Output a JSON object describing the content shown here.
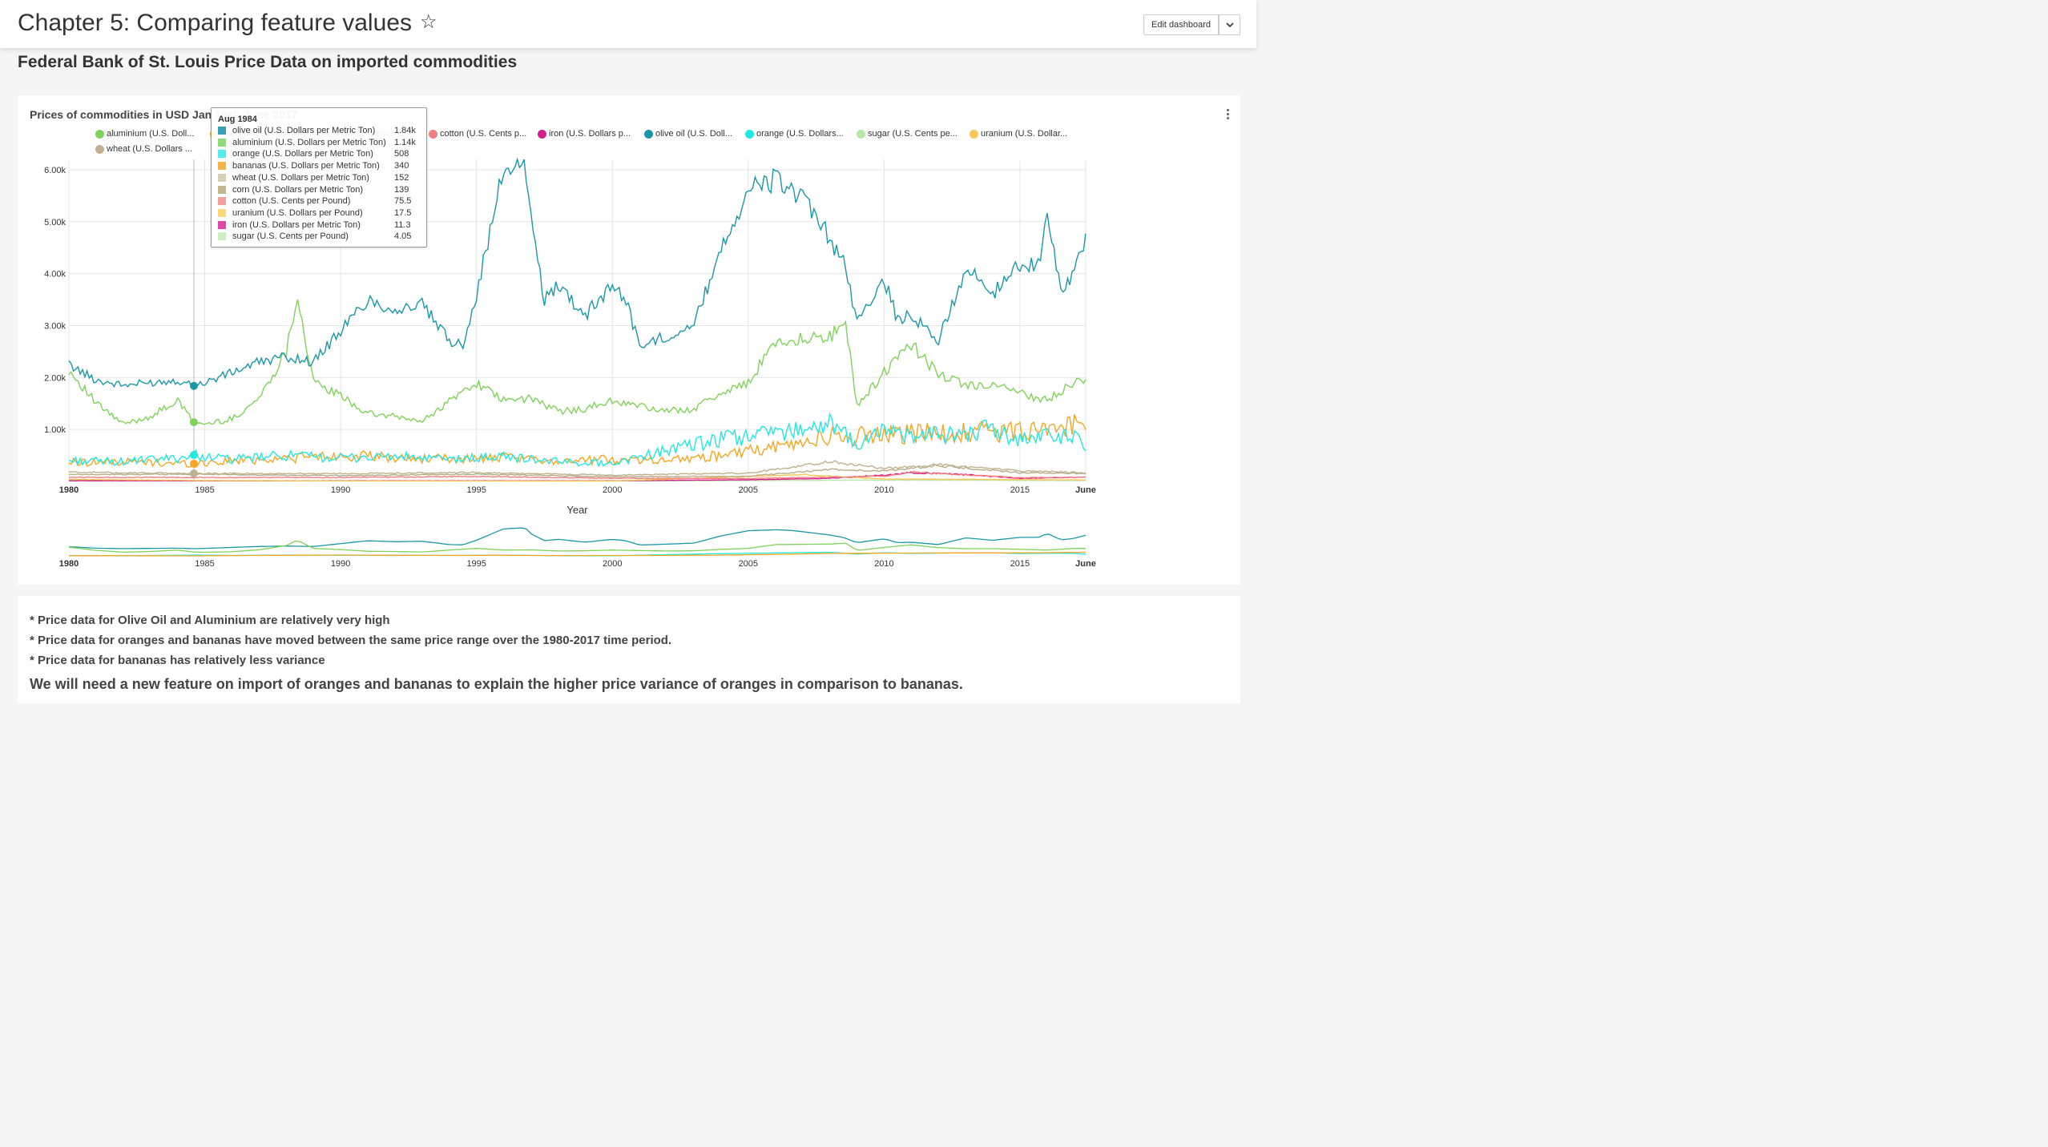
{
  "header": {
    "title": "Chapter 5: Comparing feature values",
    "edit_label": "Edit dashboard"
  },
  "section_title": "Federal Bank of St. Louis Price Data on imported commodities",
  "chart": {
    "title": "Prices of commodities in USD Jan 1980-June 2017",
    "xlabel": "Year",
    "legend": [
      {
        "name": "aluminium (U.S. Doll...",
        "color": "#7fd35a"
      },
      {
        "name": "bananas (U.S. Dollars...",
        "color": "#f5a623"
      },
      {
        "name": "corn (U.S. Dollars ...",
        "color": "#b8ad88"
      },
      {
        "name": "cotton (U.S. Cents p...",
        "color": "#f07f7f"
      },
      {
        "name": "iron (U.S. Dollars p...",
        "color": "#d81b8a"
      },
      {
        "name": "olive oil (U.S. Doll...",
        "color": "#1a98a8"
      },
      {
        "name": "orange (U.S. Dollars...",
        "color": "#22e8e0"
      },
      {
        "name": "sugar (U.S. Cents pe...",
        "color": "#b6e8a8"
      },
      {
        "name": "uranium (U.S. Dollar...",
        "color": "#f7c75a"
      },
      {
        "name": "wheat (U.S. Dollars ...",
        "color": "#c0b090"
      }
    ],
    "x_ticks": [
      "1980",
      "1985",
      "1990",
      "1995",
      "2000",
      "2005",
      "2010",
      "2015",
      "June"
    ],
    "y_ticks": [
      "1.00k",
      "2.00k",
      "3.00k",
      "4.00k",
      "5.00k",
      "6.00k"
    ]
  },
  "tooltip": {
    "date": "Aug 1984",
    "rows": [
      {
        "name": "olive oil (U.S. Dollars per Metric Ton)",
        "value": "1.84k",
        "color": "#3aa0b8"
      },
      {
        "name": "aluminium (U.S. Dollars per Metric Ton)",
        "value": "1.14k",
        "color": "#8fdc7a"
      },
      {
        "name": "orange (U.S. Dollars per Metric Ton)",
        "value": "508",
        "color": "#4ff0ec"
      },
      {
        "name": "bananas (U.S. Dollars per Metric Ton)",
        "value": "340",
        "color": "#f7b347"
      },
      {
        "name": "wheat (U.S. Dollars per Metric Ton)",
        "value": "152",
        "color": "#d8d0b0"
      },
      {
        "name": "corn (U.S. Dollars per Metric Ton)",
        "value": "139",
        "color": "#c0b690"
      },
      {
        "name": "cotton (U.S. Cents per Pound)",
        "value": "75.5",
        "color": "#f5a0a0"
      },
      {
        "name": "uranium (U.S. Dollars per Pound)",
        "value": "17.5",
        "color": "#fbd97a"
      },
      {
        "name": "iron (U.S. Dollars per Metric Ton)",
        "value": "11.3",
        "color": "#e04aa6"
      },
      {
        "name": "sugar (U.S. Cents per Pound)",
        "value": "4.05",
        "color": "#ccefc2"
      }
    ]
  },
  "notes": [
    "* Price data for Olive Oil and Aluminium are relatively very high",
    "* Price data for oranges and bananas have moved between the same price range over the 1980-2017 time period.",
    "* Price data for bananas has relatively less variance"
  ],
  "conclusion": "We will need a new feature on import of oranges and bananas to explain the higher price variance of oranges in comparison to bananas.",
  "chart_data": {
    "type": "line",
    "title": "Prices of commodities in USD Jan 1980-June 2017",
    "xlabel": "Year",
    "ylabel": "",
    "xlim": [
      1980,
      2017.42
    ],
    "ylim": [
      0,
      6200
    ],
    "grid": true,
    "legend_position": "top",
    "series": [
      {
        "name": "olive oil (U.S. Dollars per Metric Ton)",
        "color": "#1a98a8",
        "x": [
          1980,
          1981,
          1982,
          1983,
          1984,
          1984.6,
          1985,
          1986,
          1987,
          1988,
          1989,
          1990,
          1991,
          1992,
          1993,
          1994,
          1994.5,
          1995,
          1995.5,
          1996,
          1996.8,
          1997,
          1997.5,
          1998,
          1999,
          2000,
          2000.5,
          2001,
          2002,
          2003,
          2004,
          2005,
          2006,
          2006.5,
          2007,
          2008,
          2008.5,
          2009,
          2010,
          2010.5,
          2011,
          2012,
          2013,
          2014,
          2015,
          2015.7,
          2016,
          2016.5,
          2017,
          2017.42
        ],
        "y": [
          2250,
          1950,
          1850,
          1900,
          1950,
          1840,
          1900,
          2100,
          2300,
          2400,
          2300,
          2900,
          3500,
          3300,
          3400,
          2700,
          2650,
          3600,
          4800,
          6000,
          6200,
          5000,
          3500,
          3800,
          3200,
          3800,
          3500,
          2600,
          2800,
          3000,
          4500,
          5600,
          5800,
          5700,
          5400,
          4700,
          4200,
          3100,
          3900,
          3100,
          3200,
          2700,
          4100,
          3600,
          4200,
          4200,
          5050,
          3700,
          4000,
          4650
        ]
      },
      {
        "name": "aluminium (U.S. Dollars per Metric Ton)",
        "color": "#7fd35a",
        "x": [
          1980,
          1981,
          1982,
          1983,
          1984,
          1984.6,
          1985,
          1986,
          1987,
          1988,
          1988.4,
          1989,
          1990,
          1991,
          1992,
          1993,
          1994,
          1995,
          1996,
          1997,
          1998,
          1999,
          2000,
          2001,
          2002,
          2003,
          2004,
          2005,
          2006,
          2007,
          2008,
          2008.6,
          2009,
          2010,
          2011,
          2012,
          2013,
          2014,
          2015,
          2016,
          2017,
          2017.42
        ],
        "y": [
          2150,
          1500,
          1100,
          1250,
          1550,
          1140,
          1100,
          1200,
          1600,
          2500,
          3600,
          1900,
          1650,
          1300,
          1250,
          1150,
          1550,
          1900,
          1550,
          1600,
          1350,
          1400,
          1550,
          1450,
          1350,
          1400,
          1700,
          1900,
          2700,
          2750,
          2800,
          3000,
          1450,
          2100,
          2650,
          2050,
          1850,
          1850,
          1700,
          1550,
          1900,
          1900
        ]
      },
      {
        "name": "orange (U.S. Dollars per Metric Ton)",
        "color": "#22e8e0",
        "x": [
          1980,
          1982,
          1984,
          1984.6,
          1986,
          1988,
          1990,
          1992,
          1994,
          1996,
          1998,
          2000,
          2002,
          2004,
          2006,
          2008,
          2009,
          2010,
          2011,
          2012,
          2013,
          2014,
          2015,
          2016,
          2017,
          2017.42
        ],
        "y": [
          400,
          380,
          450,
          508,
          420,
          500,
          450,
          480,
          420,
          480,
          380,
          350,
          600,
          800,
          950,
          1100,
          700,
          1000,
          850,
          900,
          950,
          1000,
          800,
          900,
          850,
          700
        ]
      },
      {
        "name": "bananas (U.S. Dollars per Metric Ton)",
        "color": "#f5a623",
        "x": [
          1980,
          1982,
          1984,
          1984.6,
          1986,
          1988,
          1990,
          1992,
          1994,
          1996,
          1998,
          2000,
          2002,
          2004,
          2006,
          2008,
          2010,
          2012,
          2014,
          2016,
          2017.42
        ],
        "y": [
          370,
          380,
          350,
          340,
          400,
          450,
          500,
          450,
          430,
          450,
          400,
          420,
          420,
          500,
          650,
          850,
          900,
          950,
          950,
          1000,
          1100
        ]
      },
      {
        "name": "wheat (U.S. Dollars per Metric Ton)",
        "color": "#c0b090",
        "x": [
          1980,
          1984.6,
          1990,
          1995,
          2000,
          2005,
          2008,
          2010,
          2012,
          2015,
          2017.42
        ],
        "y": [
          180,
          152,
          150,
          170,
          120,
          160,
          380,
          250,
          320,
          200,
          170
        ]
      },
      {
        "name": "corn (U.S. Dollars per Metric Ton)",
        "color": "#b8ad88",
        "x": [
          1980,
          1984.6,
          1990,
          1995,
          2000,
          2005,
          2008,
          2010,
          2012,
          2015,
          2017.42
        ],
        "y": [
          130,
          139,
          110,
          140,
          90,
          100,
          230,
          200,
          300,
          170,
          150
        ]
      },
      {
        "name": "cotton (U.S. Cents per Pound)",
        "color": "#f07f7f",
        "x": [
          1980,
          1984.6,
          1990,
          1995,
          2000,
          2005,
          2010,
          2011,
          2015,
          2017.42
        ],
        "y": [
          80,
          75.5,
          75,
          95,
          60,
          55,
          100,
          180,
          70,
          80
        ]
      },
      {
        "name": "uranium (U.S. Dollars per Pound)",
        "color": "#f7c75a",
        "x": [
          1980,
          1984.6,
          1990,
          2000,
          2007,
          2010,
          2015,
          2017.42
        ],
        "y": [
          40,
          17.5,
          10,
          8,
          130,
          45,
          35,
          25
        ]
      },
      {
        "name": "iron (U.S. Dollars per Metric Ton)",
        "color": "#d81b8a",
        "x": [
          1980,
          1984.6,
          1990,
          2000,
          2005,
          2008,
          2010,
          2011,
          2013,
          2015,
          2017.42
        ],
        "y": [
          12,
          11.3,
          13,
          13,
          30,
          60,
          120,
          170,
          130,
          60,
          80
        ]
      },
      {
        "name": "sugar (U.S. Cents per Pound)",
        "color": "#b6e8a8",
        "x": [
          1980,
          1984.6,
          1990,
          2000,
          2010,
          2017.42
        ],
        "y": [
          28,
          4.05,
          12,
          10,
          25,
          17
        ]
      }
    ]
  }
}
